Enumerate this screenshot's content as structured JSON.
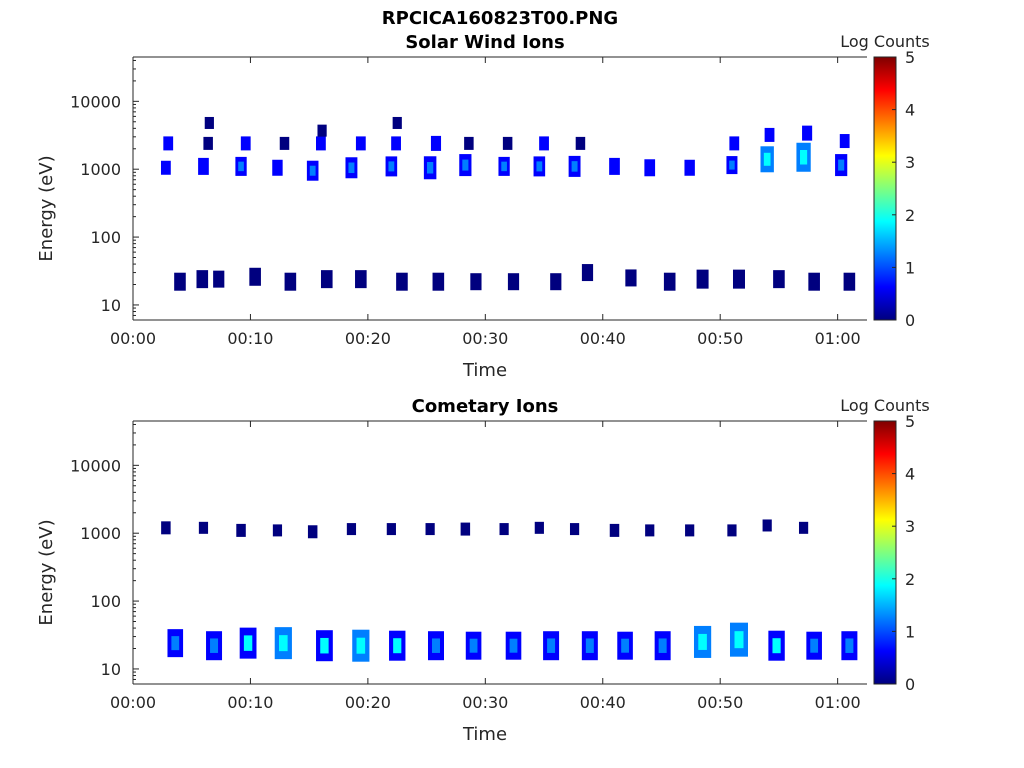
{
  "figure_title": "RPCICA160823T00.PNG",
  "colors": {
    "colormap": [
      "#00007f",
      "#0000ff",
      "#007fff",
      "#00ffff",
      "#7fff7f",
      "#ffff00",
      "#ff7f00",
      "#ff0000",
      "#7f0000"
    ],
    "axis": "#262626"
  },
  "chart_data": [
    {
      "type": "heatmap",
      "title": "Solar Wind Ions",
      "xlabel": "Time",
      "ylabel": "Energy (eV)",
      "xticks": [
        "00:00",
        "00:10",
        "00:20",
        "00:30",
        "00:40",
        "00:50",
        "01:00"
      ],
      "xlim_minutes": [
        0,
        62.5
      ],
      "yscale": "log",
      "ylim": [
        6,
        45000
      ],
      "yticks": [
        {
          "v": 10,
          "label": "10"
        },
        {
          "v": 100,
          "label": "100"
        },
        {
          "v": 1000,
          "label": "1000"
        },
        {
          "v": 10000,
          "label": "10000"
        }
      ],
      "colorbar": {
        "label": "Log Counts",
        "min": 0,
        "max": 5,
        "ticks": [
          "0",
          "1",
          "2",
          "3",
          "4",
          "5"
        ]
      },
      "grid": false,
      "blobs": [
        {
          "t": 2.8,
          "e": 1050,
          "c": 0.6
        },
        {
          "t": 3.0,
          "e": 2400,
          "c": 0.6
        },
        {
          "t": 6.0,
          "e": 1100,
          "c": 0.9
        },
        {
          "t": 6.4,
          "e": 2400,
          "c": 0.5
        },
        {
          "t": 6.5,
          "e": 4800,
          "c": 0.4
        },
        {
          "t": 9.2,
          "e": 1100,
          "c": 1.1
        },
        {
          "t": 9.6,
          "e": 2400,
          "c": 0.6
        },
        {
          "t": 12.3,
          "e": 1050,
          "c": 0.8
        },
        {
          "t": 12.9,
          "e": 2400,
          "c": 0.5
        },
        {
          "t": 15.3,
          "e": 950,
          "c": 1.2
        },
        {
          "t": 16.0,
          "e": 2400,
          "c": 0.6
        },
        {
          "t": 16.1,
          "e": 3700,
          "c": 0.4
        },
        {
          "t": 18.6,
          "e": 1050,
          "c": 1.3
        },
        {
          "t": 19.4,
          "e": 2400,
          "c": 0.6
        },
        {
          "t": 22.0,
          "e": 1100,
          "c": 1.2
        },
        {
          "t": 22.4,
          "e": 2400,
          "c": 0.6
        },
        {
          "t": 22.5,
          "e": 4800,
          "c": 0.4
        },
        {
          "t": 25.3,
          "e": 1050,
          "c": 1.5
        },
        {
          "t": 25.8,
          "e": 2400,
          "c": 0.7
        },
        {
          "t": 28.3,
          "e": 1150,
          "c": 1.4
        },
        {
          "t": 28.6,
          "e": 2400,
          "c": 0.5
        },
        {
          "t": 31.6,
          "e": 1100,
          "c": 1.1
        },
        {
          "t": 31.9,
          "e": 2400,
          "c": 0.5
        },
        {
          "t": 34.6,
          "e": 1100,
          "c": 1.2
        },
        {
          "t": 35.0,
          "e": 2400,
          "c": 0.6
        },
        {
          "t": 37.6,
          "e": 1100,
          "c": 1.3
        },
        {
          "t": 38.1,
          "e": 2400,
          "c": 0.5
        },
        {
          "t": 41.0,
          "e": 1100,
          "c": 0.9
        },
        {
          "t": 44.0,
          "e": 1050,
          "c": 0.9
        },
        {
          "t": 47.4,
          "e": 1050,
          "c": 0.8
        },
        {
          "t": 51.0,
          "e": 1150,
          "c": 1.0
        },
        {
          "t": 51.2,
          "e": 2400,
          "c": 0.6
        },
        {
          "t": 54.0,
          "e": 1400,
          "c": 1.8
        },
        {
          "t": 54.2,
          "e": 3200,
          "c": 0.6
        },
        {
          "t": 57.1,
          "e": 1500,
          "c": 2.1
        },
        {
          "t": 57.4,
          "e": 3400,
          "c": 0.7
        },
        {
          "t": 60.3,
          "e": 1150,
          "c": 1.4
        },
        {
          "t": 60.6,
          "e": 2600,
          "c": 0.6
        },
        {
          "t": 4.0,
          "e": 22,
          "c": 0.4
        },
        {
          "t": 5.9,
          "e": 24,
          "c": 0.4
        },
        {
          "t": 7.3,
          "e": 24,
          "c": 0.3
        },
        {
          "t": 10.4,
          "e": 26,
          "c": 0.4
        },
        {
          "t": 13.4,
          "e": 22,
          "c": 0.4
        },
        {
          "t": 16.5,
          "e": 24,
          "c": 0.4
        },
        {
          "t": 19.4,
          "e": 24,
          "c": 0.4
        },
        {
          "t": 22.9,
          "e": 22,
          "c": 0.4
        },
        {
          "t": 26.0,
          "e": 22,
          "c": 0.4
        },
        {
          "t": 29.2,
          "e": 22,
          "c": 0.3
        },
        {
          "t": 32.4,
          "e": 22,
          "c": 0.3
        },
        {
          "t": 36.0,
          "e": 22,
          "c": 0.3
        },
        {
          "t": 38.7,
          "e": 30,
          "c": 0.3
        },
        {
          "t": 42.4,
          "e": 25,
          "c": 0.3
        },
        {
          "t": 45.7,
          "e": 22,
          "c": 0.4
        },
        {
          "t": 48.5,
          "e": 24,
          "c": 0.5
        },
        {
          "t": 51.6,
          "e": 24,
          "c": 0.5
        },
        {
          "t": 55.0,
          "e": 24,
          "c": 0.4
        },
        {
          "t": 58.0,
          "e": 22,
          "c": 0.4
        },
        {
          "t": 61.0,
          "e": 22,
          "c": 0.4
        }
      ]
    },
    {
      "type": "heatmap",
      "title": "Cometary Ions",
      "xlabel": "Time",
      "ylabel": "Energy (eV)",
      "xticks": [
        "00:00",
        "00:10",
        "00:20",
        "00:30",
        "00:40",
        "00:50",
        "01:00"
      ],
      "xlim_minutes": [
        0,
        62.5
      ],
      "yscale": "log",
      "ylim": [
        6,
        45000
      ],
      "yticks": [
        {
          "v": 10,
          "label": "10"
        },
        {
          "v": 100,
          "label": "100"
        },
        {
          "v": 1000,
          "label": "1000"
        },
        {
          "v": 10000,
          "label": "10000"
        }
      ],
      "colorbar": {
        "label": "Log Counts",
        "min": 0,
        "max": 5,
        "ticks": [
          "0",
          "1",
          "2",
          "3",
          "4",
          "5"
        ]
      },
      "grid": false,
      "blobs": [
        {
          "t": 2.8,
          "e": 1200,
          "c": 0.5
        },
        {
          "t": 6.0,
          "e": 1200,
          "c": 0.4
        },
        {
          "t": 9.2,
          "e": 1100,
          "c": 0.5
        },
        {
          "t": 12.3,
          "e": 1100,
          "c": 0.4
        },
        {
          "t": 15.3,
          "e": 1050,
          "c": 0.5
        },
        {
          "t": 18.6,
          "e": 1150,
          "c": 0.4
        },
        {
          "t": 22.0,
          "e": 1150,
          "c": 0.4
        },
        {
          "t": 25.3,
          "e": 1150,
          "c": 0.4
        },
        {
          "t": 28.3,
          "e": 1150,
          "c": 0.5
        },
        {
          "t": 31.6,
          "e": 1150,
          "c": 0.4
        },
        {
          "t": 34.6,
          "e": 1200,
          "c": 0.4
        },
        {
          "t": 37.6,
          "e": 1150,
          "c": 0.4
        },
        {
          "t": 41.0,
          "e": 1100,
          "c": 0.5
        },
        {
          "t": 44.0,
          "e": 1100,
          "c": 0.4
        },
        {
          "t": 47.4,
          "e": 1100,
          "c": 0.4
        },
        {
          "t": 51.0,
          "e": 1100,
          "c": 0.4
        },
        {
          "t": 54.0,
          "e": 1300,
          "c": 0.4
        },
        {
          "t": 57.1,
          "e": 1200,
          "c": 0.4
        },
        {
          "t": 3.6,
          "e": 24,
          "c": 1.4
        },
        {
          "t": 6.9,
          "e": 22,
          "c": 1.5
        },
        {
          "t": 9.8,
          "e": 24,
          "c": 1.7
        },
        {
          "t": 12.8,
          "e": 24,
          "c": 1.8
        },
        {
          "t": 16.3,
          "e": 22,
          "c": 1.7
        },
        {
          "t": 19.4,
          "e": 22,
          "c": 1.8
        },
        {
          "t": 22.5,
          "e": 22,
          "c": 1.6
        },
        {
          "t": 25.8,
          "e": 22,
          "c": 1.5
        },
        {
          "t": 29.0,
          "e": 22,
          "c": 1.4
        },
        {
          "t": 32.4,
          "e": 22,
          "c": 1.4
        },
        {
          "t": 35.6,
          "e": 22,
          "c": 1.5
        },
        {
          "t": 38.9,
          "e": 22,
          "c": 1.5
        },
        {
          "t": 41.9,
          "e": 22,
          "c": 1.4
        },
        {
          "t": 45.1,
          "e": 22,
          "c": 1.5
        },
        {
          "t": 48.5,
          "e": 25,
          "c": 1.8
        },
        {
          "t": 51.6,
          "e": 27,
          "c": 2.0
        },
        {
          "t": 54.8,
          "e": 22,
          "c": 1.6
        },
        {
          "t": 58.0,
          "e": 22,
          "c": 1.4
        },
        {
          "t": 61.0,
          "e": 22,
          "c": 1.5
        }
      ]
    }
  ]
}
